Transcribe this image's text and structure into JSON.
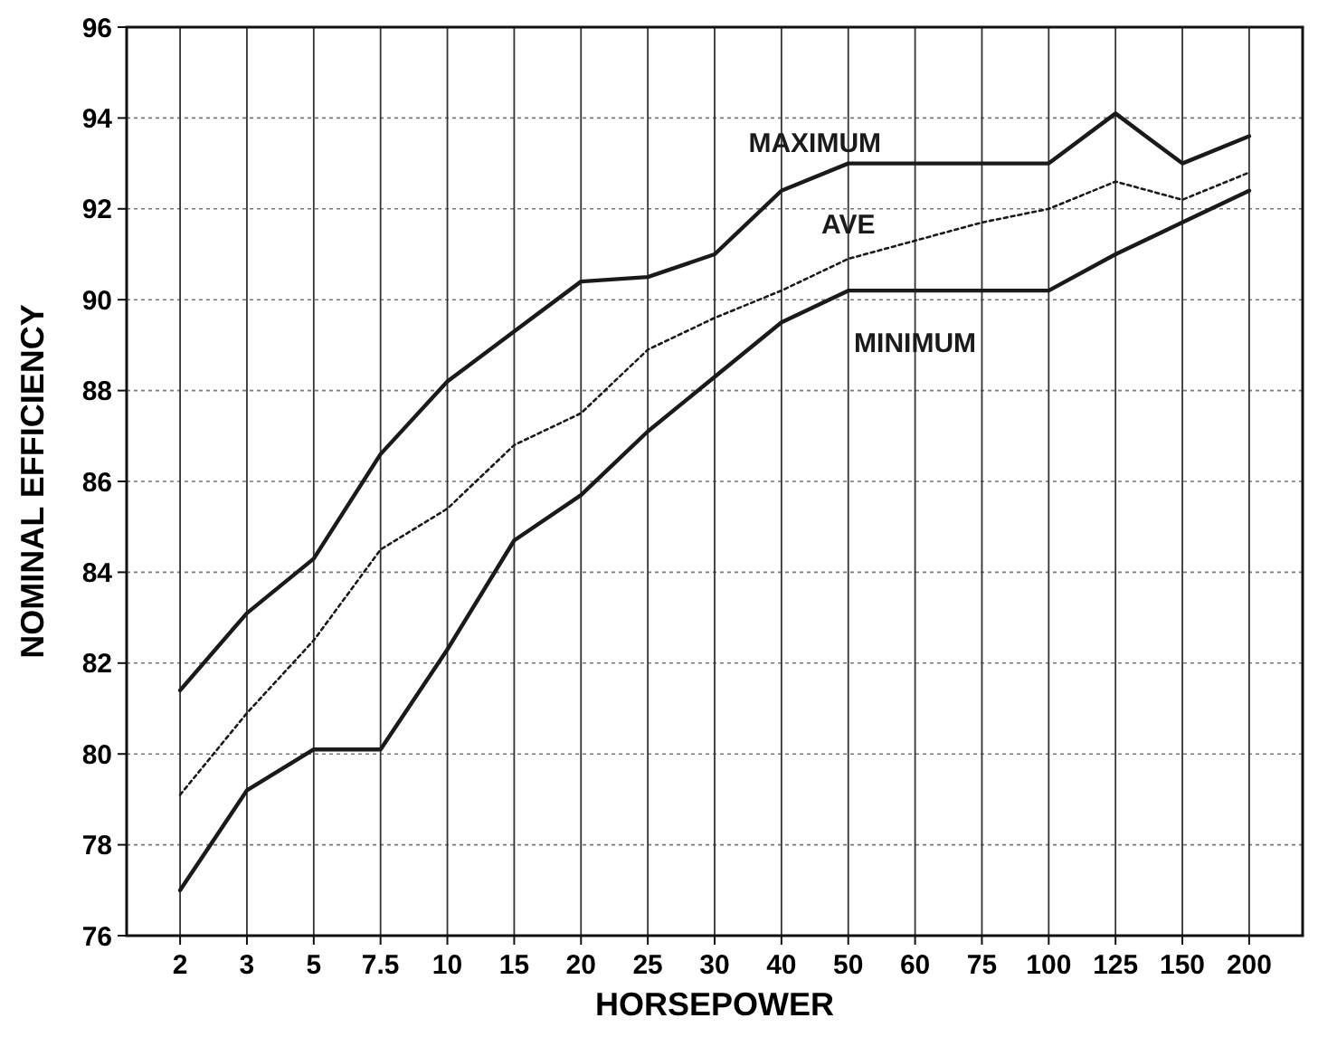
{
  "chart_data": {
    "type": "line",
    "xlabel": "HORSEPOWER",
    "ylabel": "NOMINAL EFFICIENCY",
    "categories": [
      "2",
      "3",
      "5",
      "7.5",
      "10",
      "15",
      "20",
      "25",
      "30",
      "40",
      "50",
      "60",
      "75",
      "100",
      "125",
      "150",
      "200"
    ],
    "ylim": [
      76,
      96
    ],
    "yticks": [
      76,
      78,
      80,
      82,
      84,
      86,
      88,
      90,
      92,
      94,
      96
    ],
    "grid": true,
    "legend": false,
    "marker": "none",
    "series": [
      {
        "name": "MAXIMUM",
        "color": "#1a1a1a",
        "line_style": "solid",
        "values": [
          81.4,
          83.1,
          84.3,
          86.6,
          88.2,
          89.3,
          90.4,
          90.5,
          91.0,
          92.4,
          93.0,
          93.0,
          93.0,
          93.0,
          94.1,
          93.0,
          93.6
        ]
      },
      {
        "name": "AVE",
        "color": "#1a1a1a",
        "line_style": "dotted",
        "values": [
          79.1,
          80.9,
          82.5,
          84.5,
          85.4,
          86.8,
          87.5,
          88.9,
          89.6,
          90.2,
          90.9,
          91.3,
          91.7,
          92.0,
          92.6,
          92.2,
          92.8
        ]
      },
      {
        "name": "MINIMUM",
        "color": "#1a1a1a",
        "line_style": "solid",
        "values": [
          77.0,
          79.2,
          80.1,
          80.1,
          82.3,
          84.7,
          85.7,
          87.1,
          88.3,
          89.5,
          90.2,
          90.2,
          90.2,
          90.2,
          91.0,
          91.7,
          92.4
        ]
      }
    ]
  }
}
